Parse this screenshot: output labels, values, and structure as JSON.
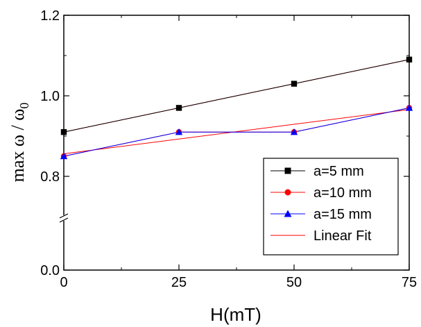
{
  "chart_data": {
    "type": "line",
    "xlabel": "H(mT)",
    "ylabel": {
      "main": "max ω / ω",
      "subscript": "0"
    },
    "xlim": [
      0,
      75
    ],
    "ylim_upper": [
      0.7,
      1.2
    ],
    "ylim_lower": [
      0.0,
      0.4
    ],
    "axis_break": true,
    "x_ticks": [
      {
        "value": 0,
        "label": "0"
      },
      {
        "value": 25,
        "label": "25"
      },
      {
        "value": 50,
        "label": "50"
      },
      {
        "value": 75,
        "label": "75"
      }
    ],
    "y_ticks": [
      {
        "value": 1.2,
        "label": "1.2"
      },
      {
        "value": 1.0,
        "label": "1.0"
      },
      {
        "value": 0.8,
        "label": "0.8"
      },
      {
        "value": 0.0,
        "label": "0.0"
      }
    ],
    "series": [
      {
        "name": "a=5 mm",
        "marker": "square",
        "color": "#000000",
        "x": [
          0,
          25,
          50,
          75
        ],
        "y": [
          0.91,
          0.97,
          1.03,
          1.09
        ]
      },
      {
        "name": "a=10 mm",
        "marker": "circle",
        "color": "#ff0000",
        "x": [
          0,
          25,
          50,
          75
        ],
        "y": [
          0.85,
          0.91,
          0.91,
          0.97
        ]
      },
      {
        "name": "a=15 mm",
        "marker": "triangle",
        "color": "#0000ff",
        "x": [
          0,
          25,
          50,
          75
        ],
        "y": [
          0.85,
          0.91,
          0.91,
          0.97
        ]
      }
    ],
    "fits": [
      {
        "name": "Linear Fit",
        "color": "#ff0000",
        "x": [
          0,
          75
        ],
        "y": [
          0.91,
          1.09
        ]
      },
      {
        "name": "Linear Fit",
        "color": "#ff0000",
        "x": [
          0,
          75
        ],
        "y": [
          0.856,
          0.966
        ]
      }
    ],
    "legend": {
      "position": "bottom-right",
      "entries": [
        {
          "label": "a=5 mm",
          "marker": "square",
          "color": "#000000"
        },
        {
          "label": "a=10 mm",
          "marker": "circle",
          "color": "#ff0000"
        },
        {
          "label": "a=15 mm",
          "marker": "triangle",
          "color": "#0000ff"
        },
        {
          "label": "Linear Fit",
          "marker": "none",
          "color": "#ff0000"
        }
      ]
    }
  }
}
